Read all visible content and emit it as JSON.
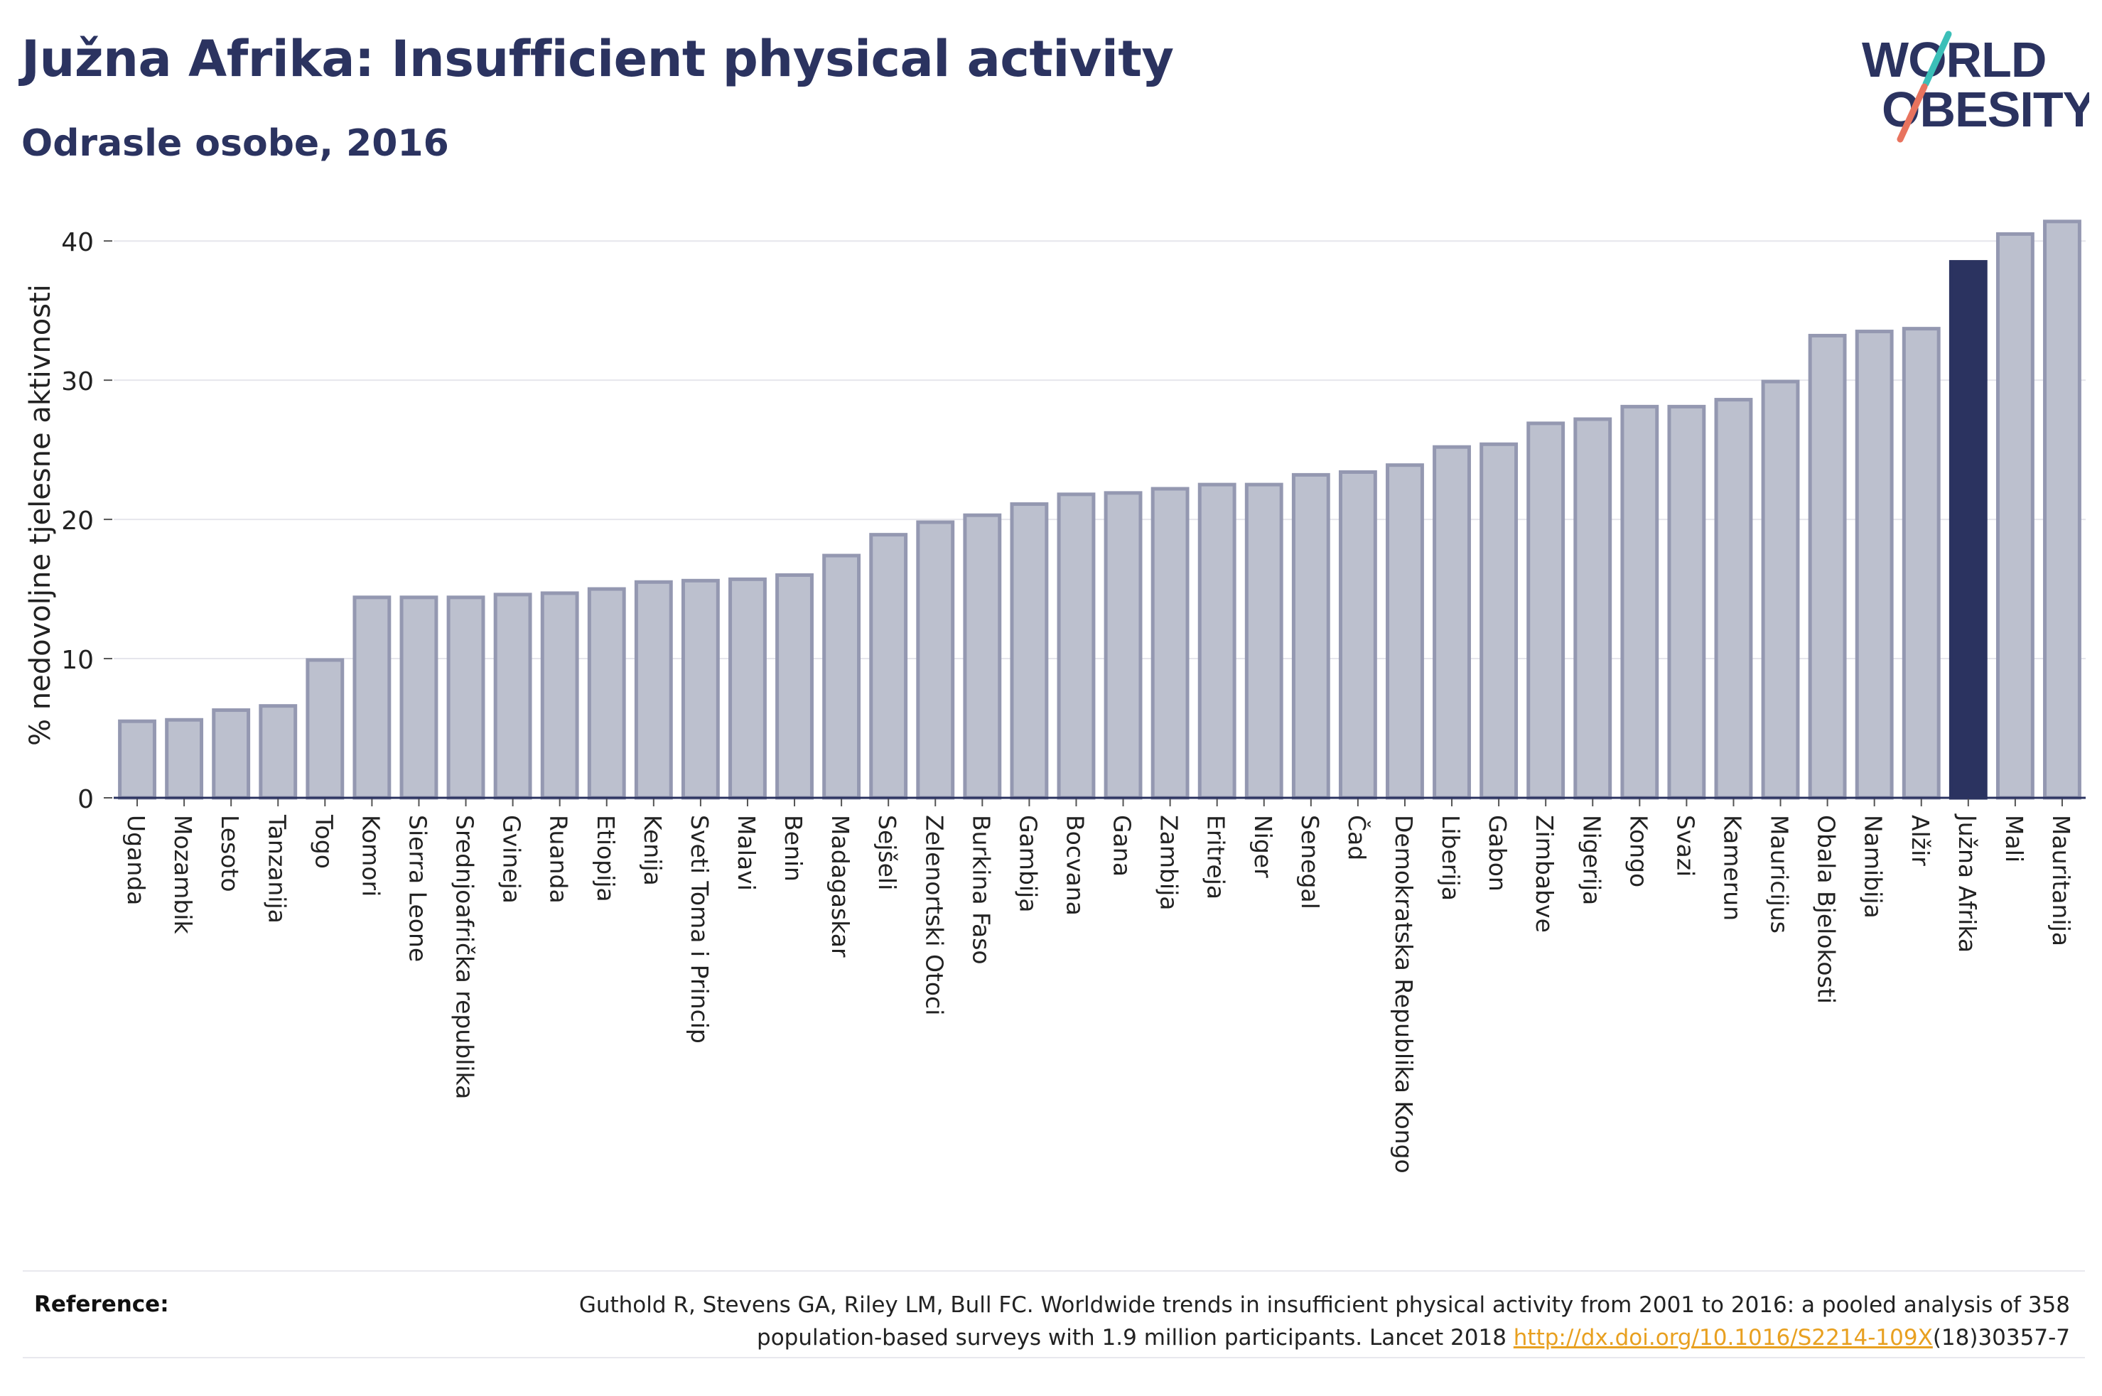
{
  "header": {
    "title": "Južna Afrika: Insufficient physical activity",
    "subtitle": "Odrasle osobe, 2016"
  },
  "logo": {
    "line1": "WORLD",
    "line2": "OBESITY"
  },
  "colors": {
    "title": "#2b3360",
    "bar_fill": "#bcc0ce",
    "bar_stroke": "#9498b1",
    "highlight": "#2b3360",
    "grid": "#e6e6ec",
    "link": "#e8a020",
    "logo_teal": "#3bbfb8",
    "logo_coral": "#e8735e"
  },
  "chart_data": {
    "type": "bar",
    "ylabel": "% nedovoljne tjelesne aktivnosti",
    "ylim": [
      0,
      42
    ],
    "yticks": [
      0,
      10,
      20,
      30,
      40
    ],
    "grid": true,
    "highlight_category": "Južna Afrika",
    "categories": [
      "Uganda",
      "Mozambik",
      "Lesoto",
      "Tanzanija",
      "Togo",
      "Komori",
      "Sierra Leone",
      "Srednjoafrička republika",
      "Gvineja",
      "Ruanda",
      "Etiopija",
      "Kenija",
      "Sveti Toma i Princip",
      "Malavi",
      "Benin",
      "Madagaskar",
      "Sejšeli",
      "Zelenortski Otoci",
      "Burkina Faso",
      "Gambija",
      "Bocvana",
      "Gana",
      "Zambija",
      "Eritreja",
      "Niger",
      "Senegal",
      "Čad",
      "Demokratska Republika Kongo",
      "Liberija",
      "Gabon",
      "Zimbabve",
      "Nigerija",
      "Kongo",
      "Svazi",
      "Kamerun",
      "Mauricijus",
      "Obala Bjelokosti",
      "Namibija",
      "Alžir",
      "Južna Afrika",
      "Mali",
      "Mauritanija"
    ],
    "values": [
      5.5,
      5.6,
      6.3,
      6.6,
      9.9,
      14.4,
      14.4,
      14.4,
      14.6,
      14.7,
      15.0,
      15.5,
      15.6,
      15.7,
      16.0,
      17.4,
      18.9,
      19.8,
      20.3,
      21.1,
      21.8,
      21.9,
      22.2,
      22.5,
      22.5,
      23.2,
      23.4,
      23.9,
      25.2,
      25.4,
      26.9,
      27.2,
      28.1,
      28.1,
      28.6,
      29.9,
      33.2,
      33.5,
      33.7,
      38.5,
      40.5,
      41.4
    ]
  },
  "reference": {
    "label": "Reference:",
    "line1": "Guthold R, Stevens GA, Riley LM, Bull FC. Worldwide trends in insufficient physical activity from 2001 to 2016: a pooled analysis of 358",
    "line2_pre": "population-based surveys with 1.9 million participants. Lancet 2018 ",
    "link": "http://dx.doi.org/10.1016/S2214-109X",
    "line2_post": "(18)30357-7"
  }
}
